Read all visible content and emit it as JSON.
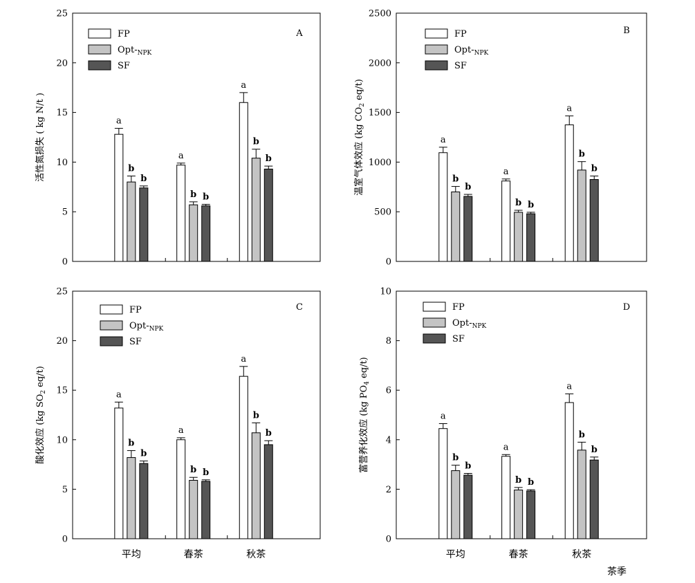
{
  "colors": {
    "FP": "#ffffff",
    "Opt": "#c4c4c4",
    "SF": "#555555"
  },
  "legend": [
    {
      "key": "FP",
      "label": "FP",
      "sub": ""
    },
    {
      "key": "Opt",
      "label": "Opt-",
      "sub": "NPK"
    },
    {
      "key": "SF",
      "label": "SF",
      "sub": ""
    }
  ],
  "x_axis_title": "茶季",
  "chart_data": [
    {
      "type": "bar",
      "panel_label": "A",
      "ylabel_parts": [
        {
          "t": "活性氮损失 ( kg N/t )"
        }
      ],
      "ylim": [
        0,
        25
      ],
      "yticks": [
        0,
        5,
        10,
        15,
        20,
        25
      ],
      "categories": [
        "平均",
        "春茶",
        "秋茶"
      ],
      "series": [
        {
          "key": "FP",
          "name": "FP",
          "values": [
            12.8,
            9.7,
            16.0
          ],
          "errors": [
            0.6,
            0.2,
            1.0
          ],
          "letters": [
            "a",
            "a",
            "a"
          ]
        },
        {
          "key": "Opt",
          "name": "Opt-NPK",
          "values": [
            8.0,
            5.7,
            10.4
          ],
          "errors": [
            0.6,
            0.3,
            0.9
          ],
          "letters": [
            "b",
            "b",
            "b"
          ]
        },
        {
          "key": "SF",
          "name": "SF",
          "values": [
            7.4,
            5.6,
            9.3
          ],
          "errors": [
            0.2,
            0.15,
            0.3
          ],
          "letters": [
            "b",
            "b",
            "b"
          ]
        }
      ]
    },
    {
      "type": "bar",
      "panel_label": "B",
      "ylabel_parts": [
        {
          "t": "温室气体效应 (kg CO"
        },
        {
          "t": "2",
          "sub": true
        },
        {
          "t": " eq/t)"
        }
      ],
      "ylim": [
        0,
        2500
      ],
      "yticks": [
        0,
        500,
        1000,
        1500,
        2000,
        2500
      ],
      "categories": [
        "平均",
        "春茶",
        "秋茶"
      ],
      "series": [
        {
          "key": "FP",
          "name": "FP",
          "values": [
            1095,
            810,
            1375
          ],
          "errors": [
            55,
            20,
            90
          ],
          "letters": [
            "a",
            "a",
            "a"
          ]
        },
        {
          "key": "Opt",
          "name": "Opt-NPK",
          "values": [
            700,
            495,
            920
          ],
          "errors": [
            55,
            20,
            85
          ],
          "letters": [
            "b",
            "b",
            "b"
          ]
        },
        {
          "key": "SF",
          "name": "SF",
          "values": [
            655,
            480,
            825
          ],
          "errors": [
            20,
            15,
            35
          ],
          "letters": [
            "b",
            "b",
            "b"
          ]
        }
      ]
    },
    {
      "type": "bar",
      "panel_label": "C",
      "ylabel_parts": [
        {
          "t": "酸化效应  (kg SO"
        },
        {
          "t": "2",
          "sub": true
        },
        {
          "t": " eq/t)"
        }
      ],
      "ylim": [
        0,
        25
      ],
      "yticks": [
        0,
        5,
        10,
        15,
        20,
        25
      ],
      "categories": [
        "平均",
        "春茶",
        "秋茶"
      ],
      "series": [
        {
          "key": "FP",
          "name": "FP",
          "values": [
            13.2,
            10.0,
            16.4
          ],
          "errors": [
            0.6,
            0.2,
            1.0
          ],
          "letters": [
            "a",
            "a",
            "a"
          ]
        },
        {
          "key": "Opt",
          "name": "Opt-NPK",
          "values": [
            8.2,
            5.9,
            10.7
          ],
          "errors": [
            0.7,
            0.3,
            1.0
          ],
          "letters": [
            "b",
            "b",
            "b"
          ]
        },
        {
          "key": "SF",
          "name": "SF",
          "values": [
            7.6,
            5.8,
            9.5
          ],
          "errors": [
            0.25,
            0.15,
            0.4
          ],
          "letters": [
            "b",
            "b",
            "b"
          ]
        }
      ]
    },
    {
      "type": "bar",
      "panel_label": "D",
      "ylabel_parts": [
        {
          "t": "富营养化效应  (kg PO"
        },
        {
          "t": "4",
          "sub": true
        },
        {
          "t": " eq/t)"
        }
      ],
      "ylim": [
        0,
        10
      ],
      "yticks": [
        0,
        2,
        4,
        6,
        8,
        10
      ],
      "categories": [
        "平均",
        "春茶",
        "秋茶"
      ],
      "series": [
        {
          "key": "FP",
          "name": "FP",
          "values": [
            4.45,
            3.33,
            5.5
          ],
          "errors": [
            0.2,
            0.07,
            0.35
          ],
          "letters": [
            "a",
            "a",
            "a"
          ]
        },
        {
          "key": "Opt",
          "name": "Opt-NPK",
          "values": [
            2.75,
            1.97,
            3.58
          ],
          "errors": [
            0.22,
            0.1,
            0.32
          ],
          "letters": [
            "b",
            "b",
            "b"
          ]
        },
        {
          "key": "SF",
          "name": "SF",
          "values": [
            2.57,
            1.93,
            3.18
          ],
          "errors": [
            0.07,
            0.05,
            0.12
          ],
          "letters": [
            "b",
            "b",
            "b"
          ]
        }
      ]
    }
  ]
}
